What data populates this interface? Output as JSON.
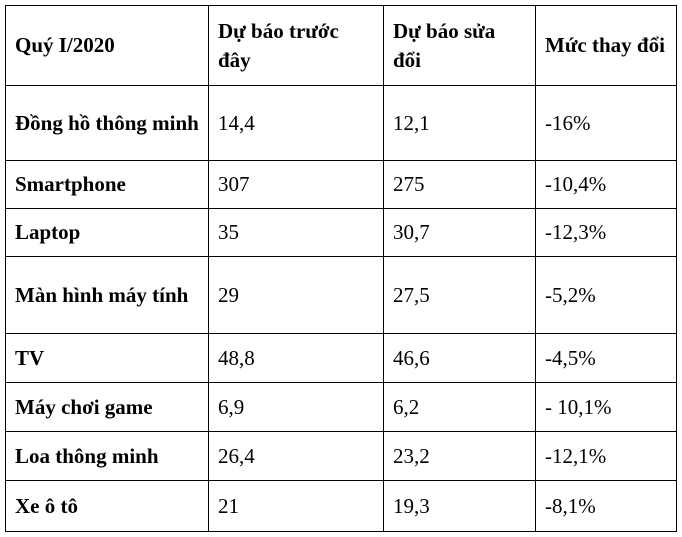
{
  "table": {
    "header": [
      "Quý I/2020",
      "Dự báo trước đây",
      "Dự báo sửa đổi",
      "Mức thay đổi"
    ],
    "rows": [
      [
        "Đồng hồ thông minh",
        "14,4",
        "12,1",
        "-16%"
      ],
      [
        "Smartphone",
        "307",
        "275",
        "-10,4%"
      ],
      [
        "Laptop",
        "35",
        "30,7",
        "-12,3%"
      ],
      [
        "Màn hình máy tính",
        "29",
        "27,5",
        "-5,2%"
      ],
      [
        "TV",
        "48,8",
        "46,6",
        "-4,5%"
      ],
      [
        "Máy chơi game",
        "6,9",
        "6,2",
        "- 10,1%"
      ],
      [
        "Loa thông minh",
        "26,4",
        "23,2",
        "-12,1%"
      ],
      [
        "Xe ô tô",
        "21",
        "19,3",
        "-8,1%"
      ]
    ]
  }
}
